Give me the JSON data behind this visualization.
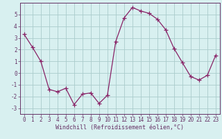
{
  "x": [
    0,
    1,
    2,
    3,
    4,
    5,
    6,
    7,
    8,
    9,
    10,
    11,
    12,
    13,
    14,
    15,
    16,
    17,
    18,
    19,
    20,
    21,
    22,
    23
  ],
  "y": [
    3.3,
    2.2,
    1.0,
    -1.4,
    -1.6,
    -1.3,
    -2.7,
    -1.8,
    -1.7,
    -2.6,
    -1.9,
    2.7,
    4.7,
    5.6,
    5.3,
    5.1,
    4.6,
    3.7,
    2.1,
    0.9,
    -0.3,
    -0.6,
    -0.2,
    1.5
  ],
  "line_color": "#882266",
  "marker": "+",
  "markersize": 4,
  "linewidth": 0.9,
  "bg_color": "#d8f0f0",
  "grid_color": "#aacccc",
  "xlabel": "Windchill (Refroidissement éolien,°C)",
  "xlabel_fontsize": 6.0,
  "tick_fontsize": 5.5,
  "xlim": [
    -0.5,
    23.5
  ],
  "ylim": [
    -3.5,
    6.0
  ],
  "yticks": [
    -3,
    -2,
    -1,
    0,
    1,
    2,
    3,
    4,
    5
  ],
  "xticks": [
    0,
    1,
    2,
    3,
    4,
    5,
    6,
    7,
    8,
    9,
    10,
    11,
    12,
    13,
    14,
    15,
    16,
    17,
    18,
    19,
    20,
    21,
    22,
    23
  ],
  "tick_color": "#663366",
  "axis_color": "#663366",
  "spine_color": "#663366"
}
